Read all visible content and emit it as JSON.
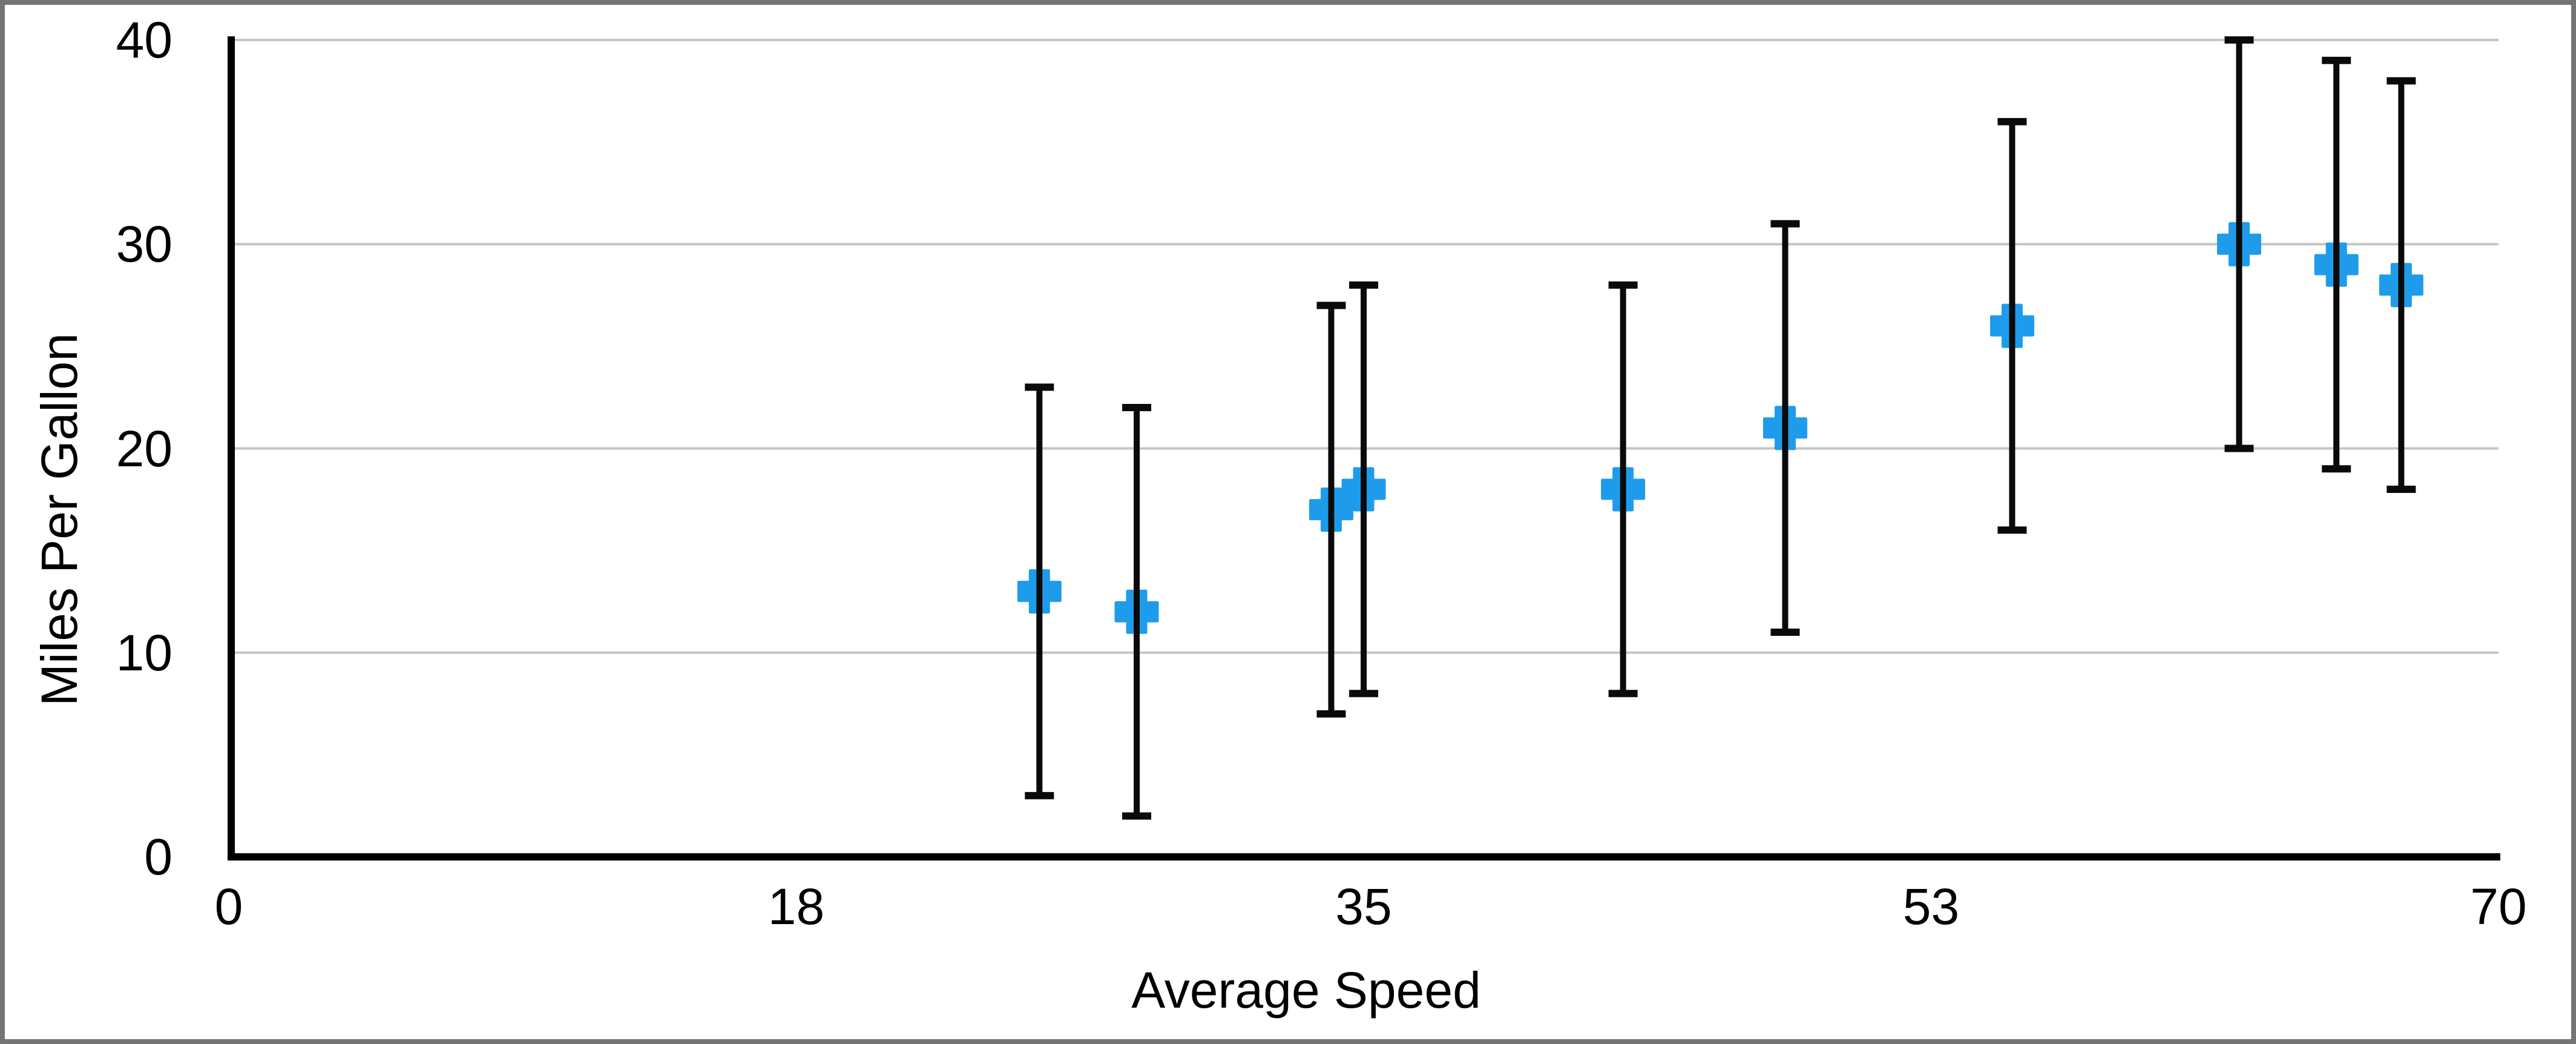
{
  "chart_data": {
    "type": "scatter",
    "title": "",
    "xlabel": "Average Speed",
    "ylabel": "Miles Per Gallon",
    "xlim": [
      0,
      70
    ],
    "ylim": [
      0,
      40
    ],
    "grid": "horizontal-gridlines-at-y-ticks",
    "legend_position": "none",
    "x_ticks": [
      {
        "value": 0,
        "label": "0"
      },
      {
        "value": 17.5,
        "label": "18"
      },
      {
        "value": 35,
        "label": "35"
      },
      {
        "value": 52.5,
        "label": "53"
      },
      {
        "value": 70,
        "label": "70"
      }
    ],
    "y_ticks": [
      {
        "value": 0,
        "label": "0"
      },
      {
        "value": 10,
        "label": "10"
      },
      {
        "value": 20,
        "label": "20"
      },
      {
        "value": 30,
        "label": "30"
      },
      {
        "value": 40,
        "label": "40"
      }
    ],
    "error_bars": {
      "axis": "y",
      "plus": 10,
      "minus": 10,
      "cap_style": "flat"
    },
    "series": [
      {
        "name": "Miles Per Gallon",
        "marker": "plus",
        "points": [
          {
            "x": 25,
            "y": 13
          },
          {
            "x": 28,
            "y": 12
          },
          {
            "x": 34,
            "y": 17
          },
          {
            "x": 35,
            "y": 18
          },
          {
            "x": 43,
            "y": 18
          },
          {
            "x": 48,
            "y": 21
          },
          {
            "x": 55,
            "y": 26
          },
          {
            "x": 62,
            "y": 30
          },
          {
            "x": 65,
            "y": 29
          },
          {
            "x": 67,
            "y": 28
          }
        ]
      }
    ],
    "colors": {
      "marker": "#1e9ceb",
      "error_bar": "#0a0a0a",
      "gridline": "#c5c5c5",
      "axis": "#000000",
      "frame_border": "#747474",
      "background": "#ffffff",
      "text": "#000000"
    }
  }
}
